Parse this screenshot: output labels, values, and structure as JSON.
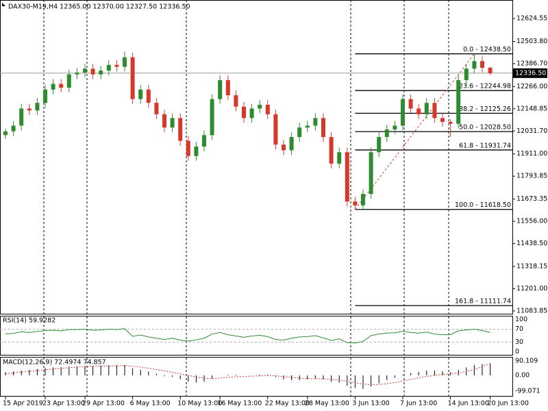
{
  "chart_data": {
    "type": "candlestick",
    "title": "DAX30-M19,H4  12365.00 12370.00 12327.50 12336.50",
    "up_color": "#2f8b2f",
    "down_color": "#d8382c",
    "categories": [
      "15 Apr 2019",
      null,
      null,
      null,
      null,
      "23 Apr 13:00",
      null,
      null,
      null,
      null,
      "29 Apr 13:00",
      null,
      null,
      null,
      null,
      null,
      "6 May 13:00",
      null,
      null,
      null,
      null,
      null,
      "10 May 13:00",
      null,
      null,
      null,
      null,
      "16 May 13:00",
      null,
      null,
      null,
      null,
      null,
      "22 May 13:00",
      null,
      null,
      null,
      null,
      "28 May 13:00",
      null,
      null,
      null,
      null,
      null,
      "3 Jun 13:00",
      null,
      null,
      null,
      null,
      null,
      "7 Jun 13:00",
      null,
      null,
      null,
      null,
      null,
      "14 Jun 13:00",
      null,
      null,
      null,
      null,
      "20 Jun 13:00"
    ],
    "candles": [
      [
        12010,
        12045,
        11990,
        12030
      ],
      [
        12030,
        12085,
        12005,
        12060
      ],
      [
        12060,
        12175,
        12035,
        12150
      ],
      [
        12150,
        12175,
        12115,
        12140
      ],
      [
        12140,
        12205,
        12115,
        12180
      ],
      [
        12180,
        12275,
        12155,
        12250
      ],
      [
        12250,
        12305,
        12225,
        12280
      ],
      [
        12280,
        12305,
        12235,
        12260
      ],
      [
        12260,
        12355,
        12235,
        12330
      ],
      [
        12330,
        12365,
        12305,
        12340
      ],
      [
        12340,
        12385,
        12315,
        12360
      ],
      [
        12360,
        12385,
        12305,
        12330
      ],
      [
        12330,
        12375,
        12305,
        12350
      ],
      [
        12350,
        12405,
        12325,
        12380
      ],
      [
        12380,
        12405,
        12345,
        12370
      ],
      [
        12370,
        12450,
        12345,
        12420
      ],
      [
        12420,
        12445,
        12175,
        12200
      ],
      [
        12200,
        12275,
        12175,
        12250
      ],
      [
        12250,
        12275,
        12155,
        12180
      ],
      [
        12180,
        12205,
        12095,
        12120
      ],
      [
        12120,
        12145,
        12025,
        12050
      ],
      [
        12050,
        12125,
        12025,
        12100
      ],
      [
        12100,
        12125,
        11955,
        11980
      ],
      [
        11980,
        12005,
        11875,
        11900
      ],
      [
        11900,
        11975,
        11875,
        11950
      ],
      [
        11950,
        12035,
        11925,
        12010
      ],
      [
        12010,
        12225,
        11985,
        12200
      ],
      [
        12200,
        12325,
        12175,
        12300
      ],
      [
        12300,
        12325,
        12195,
        12220
      ],
      [
        12220,
        12245,
        12135,
        12160
      ],
      [
        12160,
        12185,
        12075,
        12100
      ],
      [
        12100,
        12175,
        12075,
        12150
      ],
      [
        12150,
        12195,
        12125,
        12170
      ],
      [
        12170,
        12195,
        12095,
        12120
      ],
      [
        12120,
        12145,
        11935,
        11960
      ],
      [
        11960,
        11985,
        11905,
        11930
      ],
      [
        11930,
        12025,
        11905,
        12000
      ],
      [
        12000,
        12075,
        11975,
        12050
      ],
      [
        12050,
        12085,
        12025,
        12060
      ],
      [
        12060,
        12125,
        12035,
        12100
      ],
      [
        12100,
        12125,
        11975,
        12000
      ],
      [
        12000,
        12025,
        11835,
        11860
      ],
      [
        11860,
        11945,
        11835,
        11920
      ],
      [
        11920,
        11945,
        11635,
        11660
      ],
      [
        11660,
        11685,
        11618.5,
        11640
      ],
      [
        11640,
        11725,
        11618.5,
        11700
      ],
      [
        11700,
        11945,
        11675,
        11920
      ],
      [
        11920,
        12025,
        11895,
        12000
      ],
      [
        12000,
        12065,
        11975,
        12040
      ],
      [
        12040,
        12085,
        12015,
        12060
      ],
      [
        12060,
        12225,
        12035,
        12200
      ],
      [
        12200,
        12225,
        12125,
        12150
      ],
      [
        12150,
        12175,
        12095,
        12120
      ],
      [
        12120,
        12205,
        12095,
        12180
      ],
      [
        12180,
        12205,
        12075,
        12100
      ],
      [
        12100,
        12125,
        12055,
        12080
      ],
      [
        12080,
        12095,
        12000,
        12070
      ],
      [
        12070,
        12325,
        12045,
        12300
      ],
      [
        12300,
        12385,
        12275,
        12360
      ],
      [
        12360,
        12438.5,
        12335,
        12400
      ],
      [
        12400,
        12425,
        12340,
        12365
      ],
      [
        12365,
        12370,
        12327.5,
        12336.5
      ]
    ],
    "ylim": [
      11069,
      12722
    ],
    "yticks": [
      12624.55,
      {
        "value": 12503.8,
        "label": "12503.80"
      },
      {
        "value": 12386.7,
        "label": "12386.70"
      },
      {
        "value": 12266,
        "label": "12266.00"
      },
      12148.85,
      {
        "value": 12031.7,
        "label": "12031.70"
      },
      {
        "value": 11911,
        "label": "11911.00"
      },
      11793.85,
      11673.35,
      {
        "value": 11556,
        "label": "11556.00"
      },
      {
        "value": 11438.5,
        "label": "11438.50"
      },
      11318.15,
      {
        "value": 11201,
        "label": "11201.00"
      },
      11083.85
    ],
    "bid": {
      "value": 12336.5,
      "label": "12336.50"
    },
    "fib": {
      "color": "#000000",
      "trend_color": "#d8382c",
      "levels": [
        {
          "value": 12438.5,
          "label": "0.0 - 12438.50"
        },
        {
          "value": 12244.98,
          "label": "23.6 - 12244.98"
        },
        {
          "value": 12125.26,
          "label": "38.2 - 12125.26"
        },
        {
          "value": 12028.5,
          "label": "50.0 - 12028.50"
        },
        {
          "value": 11931.74,
          "label": "61.8 - 11931.74"
        },
        {
          "value": 11618.5,
          "label": "100.0 - 11618.50"
        },
        {
          "value": 11111.74,
          "label": "161.8 - 11111.74"
        }
      ]
    },
    "rsi": {
      "title": "RSI(14) 59.9282",
      "color": "#2f8b2f",
      "ylim": [
        -10,
        110
      ],
      "yticks": [
        100,
        70,
        30,
        0
      ],
      "values": [
        55,
        57,
        62,
        60,
        63,
        66,
        67,
        65,
        69,
        69,
        70,
        67,
        68,
        70,
        69,
        72,
        48,
        52,
        46,
        42,
        38,
        42,
        36,
        33,
        37,
        42,
        55,
        60,
        53,
        49,
        45,
        49,
        51,
        47,
        38,
        36,
        42,
        46,
        47,
        50,
        43,
        35,
        40,
        28,
        27,
        32,
        50,
        55,
        58,
        59,
        64,
        60,
        58,
        61,
        55,
        53,
        53,
        65,
        68,
        70,
        66,
        59.9282
      ]
    },
    "macd": {
      "title": "MACD(12,26,9) 72.4974 74.857",
      "hist_color": "#000000",
      "signal_color": "#d8382c",
      "ylim": [
        -129,
        111.6
      ],
      "yticks": [
        90.109,
        {
          "value": 0,
          "label": "0.00"
        },
        -99.071
      ],
      "histogram": [
        20,
        25,
        30,
        35,
        40,
        45,
        50,
        52,
        55,
        58,
        60,
        60,
        60,
        62,
        62,
        64,
        45,
        35,
        25,
        10,
        -5,
        -10,
        -25,
        -40,
        -45,
        -40,
        -20,
        0,
        5,
        5,
        0,
        0,
        5,
        5,
        -10,
        -25,
        -30,
        -30,
        -25,
        -20,
        -25,
        -40,
        -45,
        -65,
        -80,
        -85,
        -70,
        -50,
        -30,
        -15,
        5,
        15,
        20,
        30,
        30,
        25,
        20,
        35,
        50,
        65,
        72,
        72.4974
      ],
      "signal": [
        10,
        15,
        20,
        25,
        30,
        35,
        40,
        44,
        48,
        52,
        55,
        57,
        58,
        59,
        60,
        61,
        58,
        52,
        45,
        37,
        28,
        19,
        10,
        0,
        -10,
        -18,
        -20,
        -17,
        -13,
        -9,
        -7,
        -5,
        -3,
        -1,
        -3,
        -8,
        -13,
        -17,
        -20,
        -21,
        -22,
        -26,
        -30,
        -37,
        -46,
        -54,
        -58,
        -57,
        -52,
        -45,
        -35,
        -25,
        -16,
        -7,
        0,
        6,
        10,
        15,
        24,
        36,
        55,
        74.857
      ]
    }
  }
}
